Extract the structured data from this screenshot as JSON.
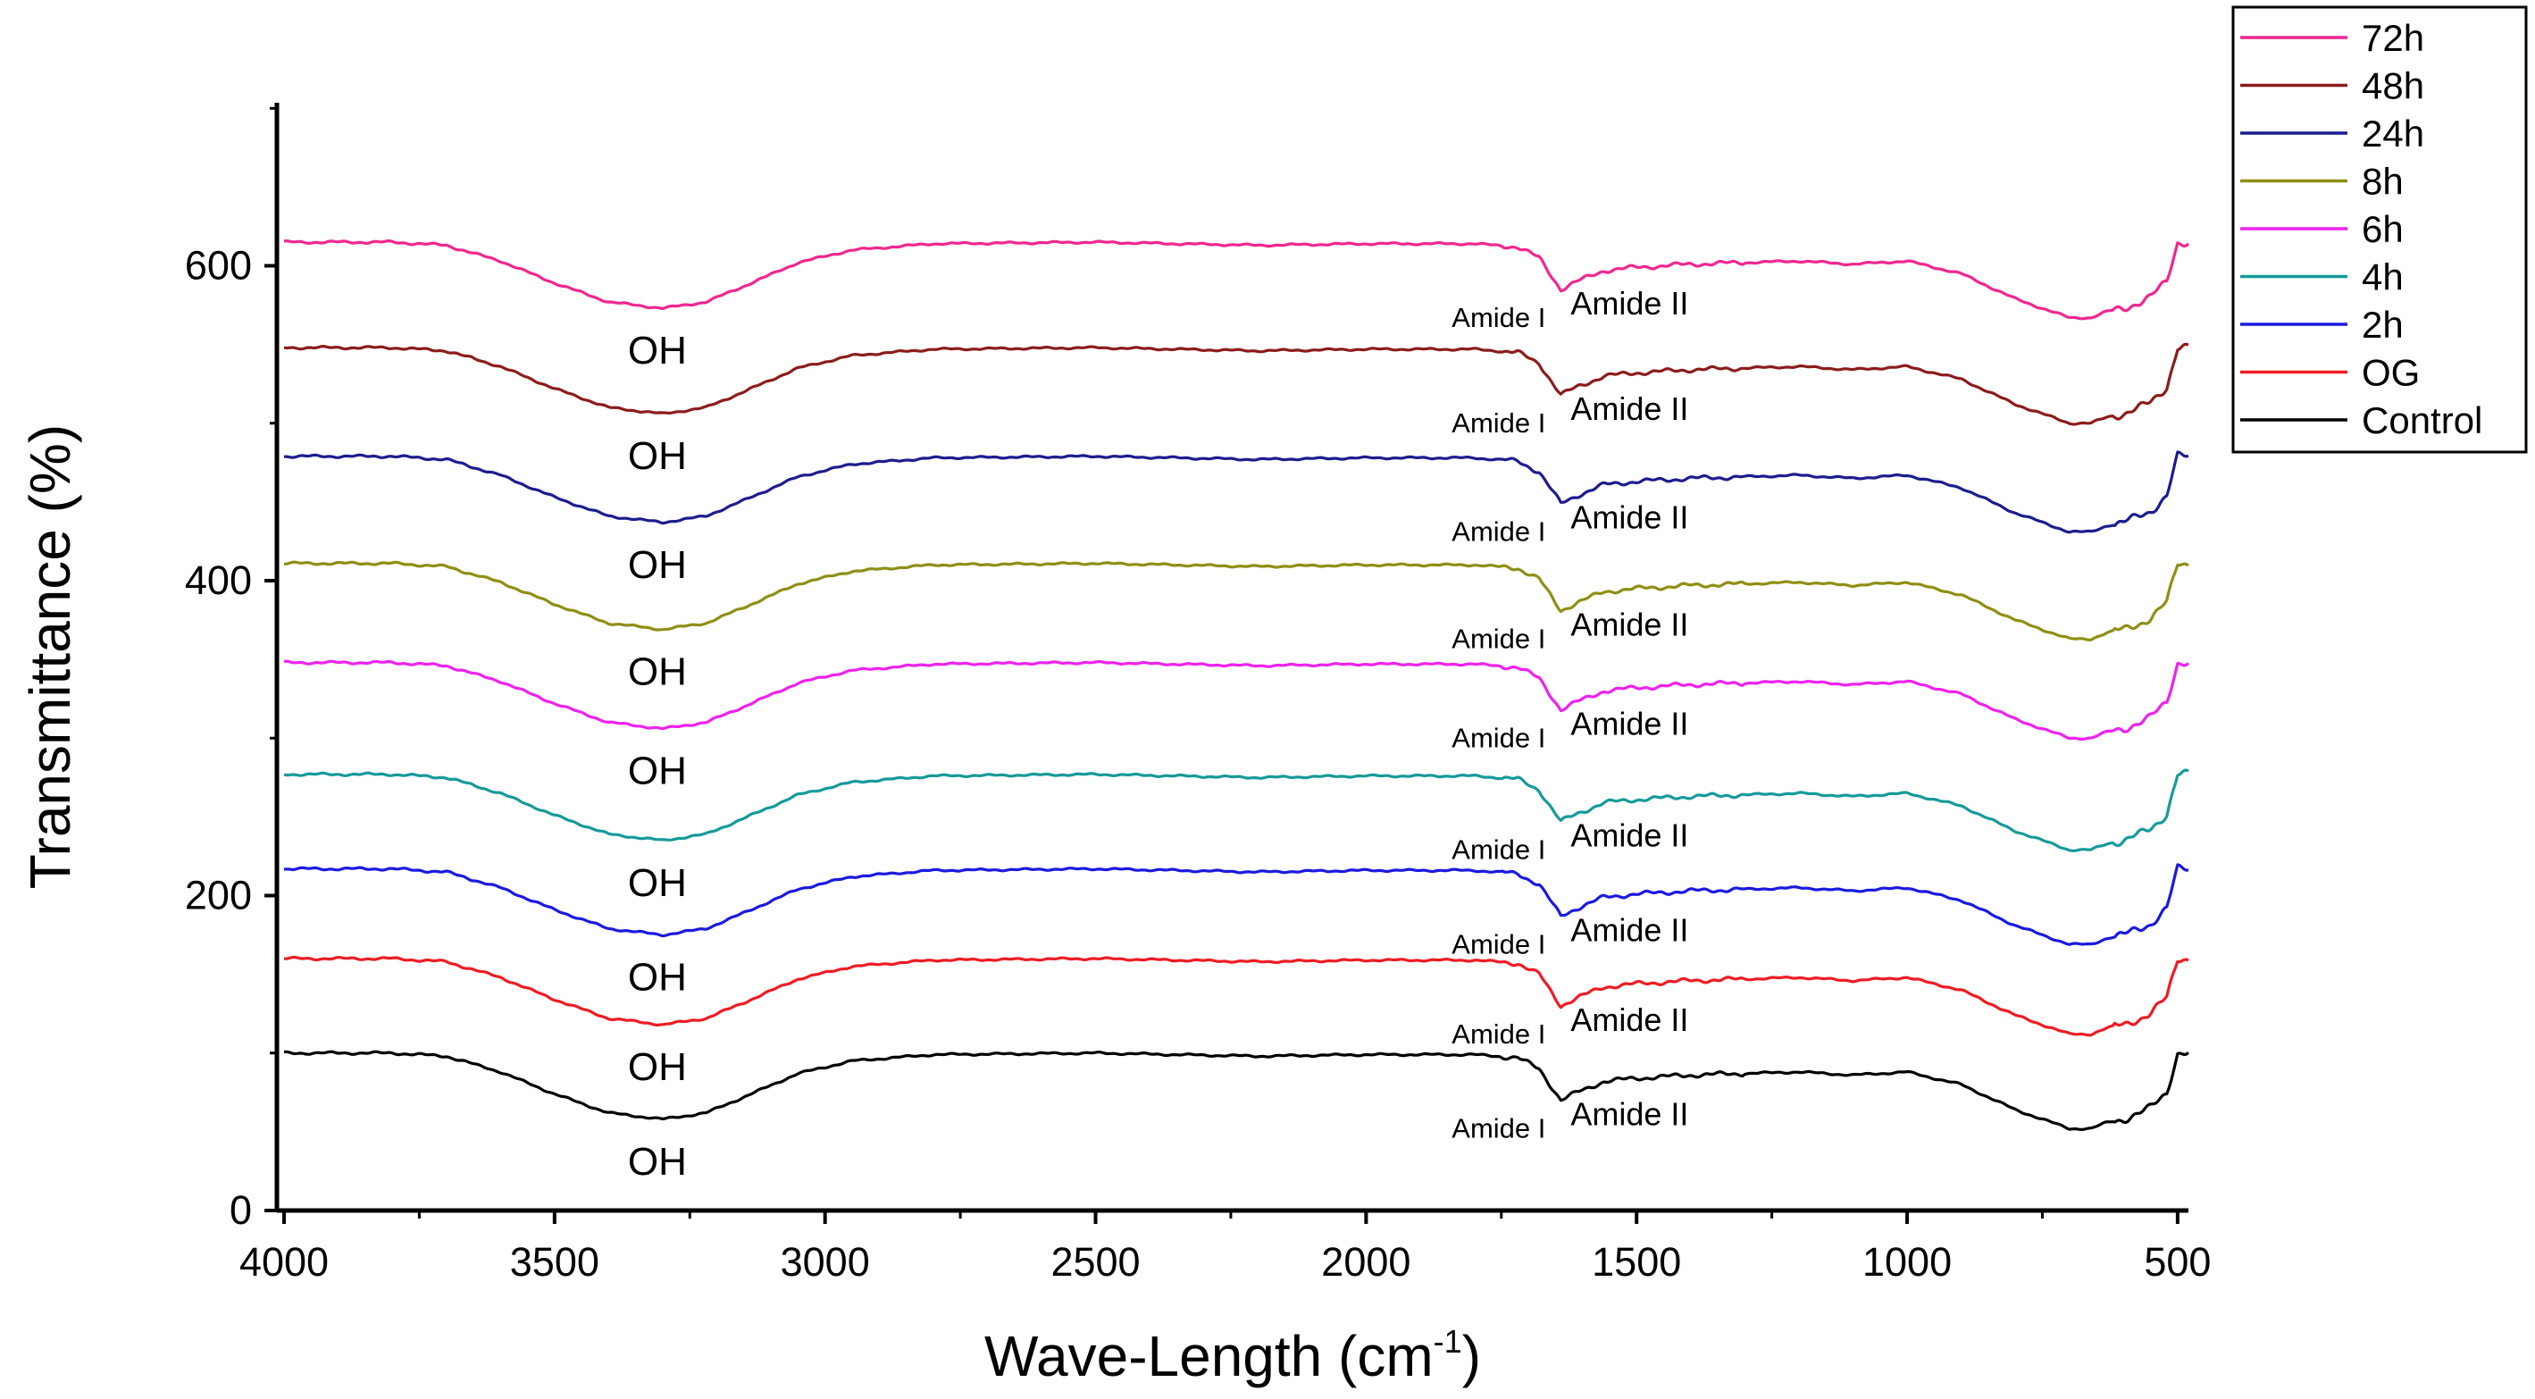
{
  "chart_data": {
    "type": "line",
    "title": "",
    "xlabel": "Wave-Length (cm",
    "xlabel_sup": "-1",
    "xlabel_suffix": ")",
    "ylabel": "Transmittance (%)",
    "xlim": [
      4000,
      480
    ],
    "ylim": [
      0,
      700
    ],
    "xticks": [
      4000,
      3500,
      3000,
      2500,
      2000,
      1500,
      1000,
      500
    ],
    "xtick_labels": [
      "4000",
      "3500",
      "3000",
      "2500",
      "2000",
      "1500",
      "1000",
      "500"
    ],
    "yticks": [
      0,
      200,
      400,
      600
    ],
    "ytick_labels": [
      "0",
      "200",
      "400",
      "600"
    ],
    "profile": {
      "x": [
        4000,
        3800,
        3700,
        3600,
        3500,
        3400,
        3300,
        3220,
        3150,
        3050,
        2950,
        2800,
        2500,
        2200,
        2000,
        1800,
        1720,
        1680,
        1640,
        1610,
        1560,
        1500,
        1400,
        1300,
        1200,
        1100,
        1000,
        900,
        800,
        700,
        660,
        630,
        600,
        570,
        550,
        520,
        500,
        480
      ],
      "y": [
        0,
        0,
        -2,
        -12,
        -26,
        -38,
        -42,
        -38,
        -28,
        -13,
        -5,
        -1,
        0,
        -2,
        -1,
        -1,
        -3,
        -10,
        -30,
        -25,
        -18,
        -16,
        -14,
        -13,
        -12,
        -14,
        -12,
        -20,
        -36,
        -48,
        -48,
        -44,
        -42,
        -38,
        -35,
        -25,
        0,
        0
      ]
    },
    "series": [
      {
        "name": "Control",
        "color": "#000000",
        "base": 100
      },
      {
        "name": "OG",
        "color": "#ee1c24",
        "base": 160
      },
      {
        "name": "2h",
        "color": "#1a1adf",
        "base": 217
      },
      {
        "name": "4h",
        "color": "#179a9a",
        "base": 277
      },
      {
        "name": "6h",
        "color": "#ee22ee",
        "base": 348
      },
      {
        "name": "8h",
        "color": "#8f8f14",
        "base": 411
      },
      {
        "name": "24h",
        "color": "#1d1d8f",
        "base": 479
      },
      {
        "name": "48h",
        "color": "#8c1c1c",
        "base": 548
      },
      {
        "name": "72h",
        "color": "#f0278f",
        "base": 615
      }
    ],
    "legend": {
      "position": "top-right",
      "order": [
        "72h",
        "48h",
        "24h",
        "8h",
        "6h",
        "4h",
        "2h",
        "OG",
        "Control"
      ]
    },
    "annotations": {
      "oh_label": "OH",
      "amide1_label": "Amide I",
      "amide2_label": "Amide II"
    }
  }
}
